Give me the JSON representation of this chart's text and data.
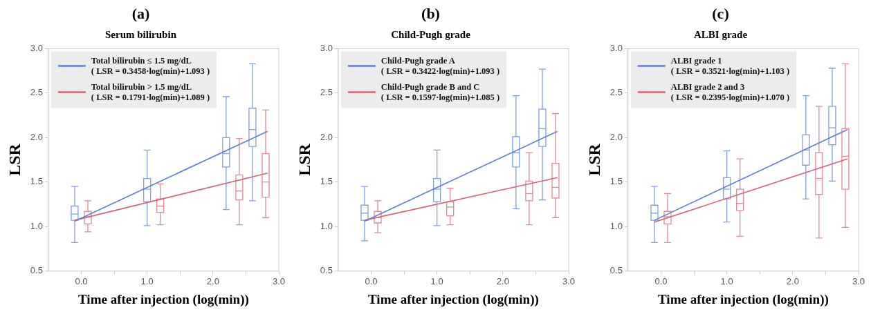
{
  "chart_data": [
    {
      "type": "box",
      "title": "(a)",
      "subtitle": "Serum bilirubin",
      "xlabel": "Time after injection (log(min))",
      "ylabel": "LSR",
      "xlim": [
        -0.5,
        3.0
      ],
      "xticks": [
        {
          "value": 0,
          "label": "0.0"
        },
        {
          "value": 0.5,
          "label": null
        },
        {
          "value": 1,
          "label": "1.0"
        },
        {
          "value": 1.5,
          "label": null
        },
        {
          "value": 2,
          "label": "2.0"
        },
        {
          "value": 2.5,
          "label": null
        },
        {
          "value": 3,
          "label": "3.0"
        }
      ],
      "ylim": [
        0.5,
        3.0
      ],
      "yticks": [
        0.5,
        {
          "value": 1,
          "label": "1.0"
        },
        1.5,
        {
          "value": 2,
          "label": "2.0"
        },
        2.5,
        {
          "value": 3,
          "label": "3.0"
        }
      ],
      "legend": "top left",
      "series": [
        {
          "type": "box",
          "color": "#7f9fe0",
          "x": [
            -0.1,
            1.0,
            2.2,
            2.6
          ],
          "boxes": [
            {
              "low": 0.82,
              "q1": 1.07,
              "median": 1.14,
              "q3": 1.23,
              "high": 1.45
            },
            {
              "low": 1.01,
              "q1": 1.28,
              "median": 1.42,
              "q3": 1.54,
              "high": 1.86
            },
            {
              "low": 1.19,
              "q1": 1.67,
              "median": 1.82,
              "q3": 2.0,
              "high": 2.46
            },
            {
              "low": 1.29,
              "q1": 1.9,
              "median": 2.09,
              "q3": 2.33,
              "high": 2.83
            }
          ]
        },
        {
          "type": "box",
          "color": "#e08a98",
          "x": [
            0.1,
            1.2,
            2.4,
            2.8
          ],
          "boxes": [
            {
              "low": 0.94,
              "q1": 1.03,
              "median": 1.11,
              "q3": 1.17,
              "high": 1.29
            },
            {
              "low": 1.02,
              "q1": 1.16,
              "median": 1.23,
              "q3": 1.31,
              "high": 1.48
            },
            {
              "low": 1.02,
              "q1": 1.3,
              "median": 1.4,
              "q3": 1.58,
              "high": 1.99
            },
            {
              "low": 1.1,
              "q1": 1.33,
              "median": 1.5,
              "q3": 1.82,
              "high": 2.31
            }
          ]
        },
        {
          "type": "line",
          "name": "Total bilirubin ≤ 1.5 mg/dL\n( LSR = 0.3458·log(min)+1.093 )",
          "color": "#5b7fd6",
          "x": [
            -0.1,
            2.83
          ],
          "values": [
            1.06,
            2.07
          ]
        },
        {
          "type": "line",
          "name": "Total bilirubin > 1.5 mg/dL\n( LSR = 0.1791·log(min)+1.089 )",
          "color": "#d9606e",
          "x": [
            -0.1,
            2.83
          ],
          "values": [
            1.07,
            1.6
          ]
        }
      ]
    },
    {
      "type": "box",
      "title": "(b)",
      "subtitle": "Child-Pugh grade",
      "xlabel": "Time after injection (log(min))",
      "ylabel": "LSR",
      "xlim": [
        -0.5,
        3.0
      ],
      "xticks": [
        {
          "value": 0,
          "label": "0.0"
        },
        {
          "value": 0.5,
          "label": null
        },
        {
          "value": 1,
          "label": "1.0"
        },
        {
          "value": 1.5,
          "label": null
        },
        {
          "value": 2,
          "label": "2.0"
        },
        {
          "value": 2.5,
          "label": null
        },
        {
          "value": 3,
          "label": "3.0"
        }
      ],
      "ylim": [
        0.5,
        3.0
      ],
      "yticks": [
        0.5,
        {
          "value": 1,
          "label": "1.0"
        },
        1.5,
        {
          "value": 2,
          "label": "2.0"
        },
        2.5,
        {
          "value": 3,
          "label": "3.0"
        }
      ],
      "legend": "top left",
      "series": [
        {
          "type": "box",
          "color": "#7f9fe0",
          "x": [
            -0.1,
            1.0,
            2.2,
            2.6
          ],
          "boxes": [
            {
              "low": 0.84,
              "q1": 1.07,
              "median": 1.15,
              "q3": 1.24,
              "high": 1.45
            },
            {
              "low": 1.01,
              "q1": 1.28,
              "median": 1.42,
              "q3": 1.54,
              "high": 1.86
            },
            {
              "low": 1.2,
              "q1": 1.67,
              "median": 1.83,
              "q3": 2.01,
              "high": 2.47
            },
            {
              "low": 1.3,
              "q1": 1.9,
              "median": 2.1,
              "q3": 2.32,
              "high": 2.77
            }
          ]
        },
        {
          "type": "box",
          "color": "#e08a98",
          "x": [
            0.1,
            1.2,
            2.4,
            2.8
          ],
          "boxes": [
            {
              "low": 0.93,
              "q1": 1.04,
              "median": 1.1,
              "q3": 1.17,
              "high": 1.29
            },
            {
              "low": 1.02,
              "q1": 1.12,
              "median": 1.22,
              "q3": 1.28,
              "high": 1.43
            },
            {
              "low": 1.02,
              "q1": 1.29,
              "median": 1.37,
              "q3": 1.51,
              "high": 1.83
            },
            {
              "low": 1.1,
              "q1": 1.32,
              "median": 1.44,
              "q3": 1.71,
              "high": 2.27
            }
          ]
        },
        {
          "type": "line",
          "name": "Child-Pugh grade A\n( LSR = 0.3422·log(min)+1.093 )",
          "color": "#5b7fd6",
          "x": [
            -0.1,
            2.83
          ],
          "values": [
            1.06,
            2.07
          ]
        },
        {
          "type": "line",
          "name": "Child-Pugh grade B and C\n( LSR = 0.1597·log(min)+1.085 )",
          "color": "#d9606e",
          "x": [
            -0.1,
            2.83
          ],
          "values": [
            1.07,
            1.55
          ]
        }
      ]
    },
    {
      "type": "box",
      "title": "(c)",
      "subtitle": "ALBI grade",
      "xlabel": "Time after injection (log(min))",
      "ylabel": "LSR",
      "xlim": [
        -0.5,
        3.0
      ],
      "xticks": [
        {
          "value": 0,
          "label": "0.0"
        },
        {
          "value": 0.5,
          "label": null
        },
        {
          "value": 1,
          "label": "1.0"
        },
        {
          "value": 1.5,
          "label": null
        },
        {
          "value": 2,
          "label": "2.0"
        },
        {
          "value": 2.5,
          "label": null
        },
        {
          "value": 3,
          "label": "3.0"
        }
      ],
      "ylim": [
        0.5,
        3.0
      ],
      "yticks": [
        0.5,
        {
          "value": 1,
          "label": "1.0"
        },
        1.5,
        {
          "value": 2,
          "label": "2.0"
        },
        2.5,
        {
          "value": 3,
          "label": "3.0"
        }
      ],
      "legend": "top left",
      "series": [
        {
          "type": "box",
          "color": "#7f9fe0",
          "x": [
            -0.1,
            1.0,
            2.2,
            2.6
          ],
          "boxes": [
            {
              "low": 0.82,
              "q1": 1.07,
              "median": 1.15,
              "q3": 1.24,
              "high": 1.45
            },
            {
              "low": 1.05,
              "q1": 1.31,
              "median": 1.42,
              "q3": 1.55,
              "high": 1.85
            },
            {
              "low": 1.31,
              "q1": 1.69,
              "median": 1.86,
              "q3": 2.03,
              "high": 2.47
            },
            {
              "low": 1.51,
              "q1": 1.92,
              "median": 2.11,
              "q3": 2.35,
              "high": 2.78
            }
          ]
        },
        {
          "type": "box",
          "color": "#e08a98",
          "x": [
            0.1,
            1.2,
            2.4,
            2.8
          ],
          "boxes": [
            {
              "low": 0.82,
              "q1": 1.03,
              "median": 1.11,
              "q3": 1.17,
              "high": 1.37
            },
            {
              "low": 0.89,
              "q1": 1.18,
              "median": 1.26,
              "q3": 1.42,
              "high": 1.76
            },
            {
              "low": 0.87,
              "q1": 1.36,
              "median": 1.54,
              "q3": 1.83,
              "high": 2.35
            },
            {
              "low": 0.99,
              "q1": 1.42,
              "median": 1.79,
              "q3": 2.1,
              "high": 2.83
            }
          ]
        },
        {
          "type": "line",
          "name": "ALBI grade 1\n( LSR = 0.3521·log(min)+1.103 )",
          "color": "#5b7fd6",
          "x": [
            -0.1,
            2.83
          ],
          "values": [
            1.07,
            2.09
          ]
        },
        {
          "type": "line",
          "name": "ALBI grade 2 and 3\n( LSR = 0.2395·log(min)+1.070 )",
          "color": "#d9606e",
          "x": [
            -0.1,
            2.83
          ],
          "values": [
            1.05,
            1.76
          ]
        }
      ]
    }
  ]
}
